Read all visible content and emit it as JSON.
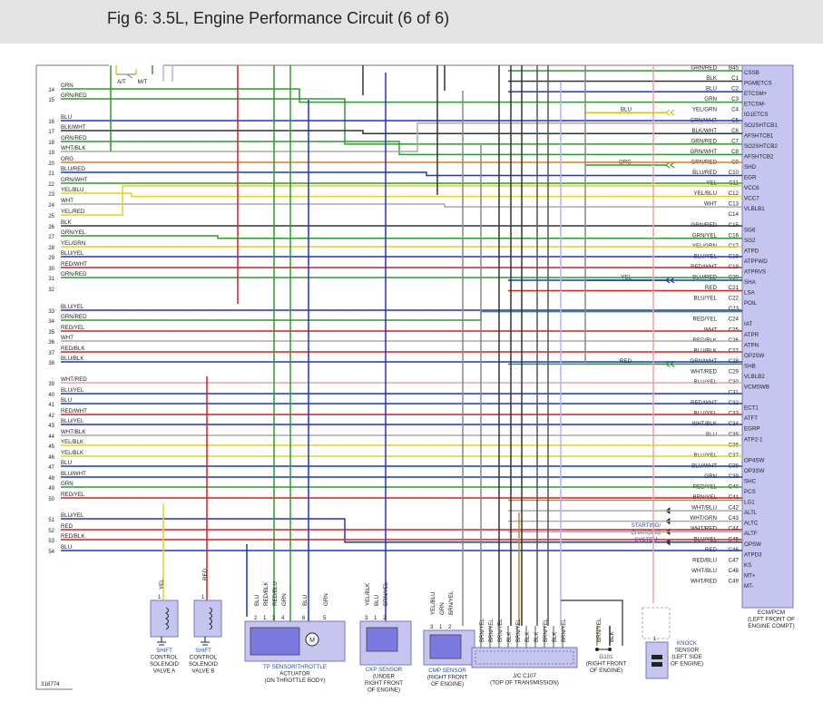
{
  "title": "Fig 6: 3.5L, Engine Performance Circuit (6 of 6)",
  "figure_id": "318774",
  "ecm": {
    "label_lines": [
      "ECM/PCM",
      "(LEFT FRONT OF",
      "ENGINE COMPT)"
    ],
    "pins": [
      {
        "pin": "B45",
        "func": "CSSB",
        "wire": "GRN/RED",
        "color": "#2e9a2e"
      },
      {
        "pin": "C1",
        "func": "PGMETCS",
        "wire": "BLK",
        "color": "#333333"
      },
      {
        "pin": "C2",
        "func": "ETCSM+",
        "wire": "BLU",
        "color": "#1a35c8"
      },
      {
        "pin": "C3",
        "func": "ETCSM-",
        "wire": "GRN",
        "color": "#2e9a2e"
      },
      {
        "pin": "C4",
        "func": "IG1ETCS",
        "wire": "YEL/GRN",
        "color": "#c9c91a",
        "ext": "BLU"
      },
      {
        "pin": "C5",
        "func": "SO2SHTCB1",
        "wire": "GRN/WHT",
        "color": "#2e9a2e"
      },
      {
        "pin": "C6",
        "func": "AFSHTCB1",
        "wire": "BLK/WHT",
        "color": "#333333"
      },
      {
        "pin": "C7",
        "func": "SO2SHTCB2",
        "wire": "GRN/RED",
        "color": "#2e9a2e"
      },
      {
        "pin": "C8",
        "func": "AFSHTCB2",
        "wire": "GRN/WHT",
        "color": "#2e9a2e"
      },
      {
        "pin": "C9",
        "func": "SHD",
        "wire": "GRN/RED",
        "color": "#2e9a2e",
        "ext": "ORG"
      },
      {
        "pin": "C10",
        "func": "EGR",
        "wire": "BLU/RED",
        "color": "#1a35c8"
      },
      {
        "pin": "C11",
        "func": "VCC6",
        "wire": "YEL",
        "color": "#e6d21a"
      },
      {
        "pin": "C12",
        "func": "VCC7",
        "wire": "YEL/BLU",
        "color": "#e6d21a"
      },
      {
        "pin": "C13",
        "func": "VLBLB1",
        "wire": "WHT",
        "color": "#aaaaaa"
      },
      {
        "pin": "C14",
        "func": "",
        "wire": "",
        "color": "#e9a3a3"
      },
      {
        "pin": "C15",
        "func": "SG6",
        "wire": "GRN/RED",
        "color": "#2e9a2e"
      },
      {
        "pin": "C16",
        "func": "SG2",
        "wire": "GRN/YEL",
        "color": "#2e9a2e"
      },
      {
        "pin": "C17",
        "func": "ATPD",
        "wire": "YEL/GRN",
        "color": "#e6d21a"
      },
      {
        "pin": "C18",
        "func": "ATPFWD",
        "wire": "BLU/YEL",
        "color": "#1a35c8"
      },
      {
        "pin": "C19",
        "func": "ATPRVS",
        "wire": "RED/WHT",
        "color": "#d42020"
      },
      {
        "pin": "C20",
        "func": "SHA",
        "wire": "BLU/RED",
        "color": "#1a35c8",
        "ext": "YEL"
      },
      {
        "pin": "C21",
        "func": "LSA",
        "wire": "RED",
        "color": "#d42020"
      },
      {
        "pin": "C22",
        "func": "POIL",
        "wire": "BLU/YEL",
        "color": "#1a35c8"
      },
      {
        "pin": "C23",
        "func": "",
        "wire": "",
        "color": "#888888"
      },
      {
        "pin": "C24",
        "func": "IAT",
        "wire": "RED/YEL",
        "color": "#d42020"
      },
      {
        "pin": "C25",
        "func": "ATPR",
        "wire": "WHT",
        "color": "#aaaaaa"
      },
      {
        "pin": "C26",
        "func": "ATPN",
        "wire": "RED/BLK",
        "color": "#d42020"
      },
      {
        "pin": "C27",
        "func": "OP2SW",
        "wire": "BLU/BLK",
        "color": "#1a35c8"
      },
      {
        "pin": "C28",
        "func": "SHB",
        "wire": "GRN/WHT",
        "color": "#2e9a2e",
        "ext": "RED"
      },
      {
        "pin": "C29",
        "func": "VLBLB2",
        "wire": "WHT/RED",
        "color": "#e9a3a3"
      },
      {
        "pin": "C30",
        "func": "VCMSWB",
        "wire": "BLU/YEL",
        "color": "#1a35c8"
      },
      {
        "pin": "C31",
        "func": "",
        "wire": "",
        "color": "#1a35c8"
      },
      {
        "pin": "C32",
        "func": "ECT1",
        "wire": "RED/WHT",
        "color": "#d42020"
      },
      {
        "pin": "C33",
        "func": "ATFT",
        "wire": "BLU/YEL",
        "color": "#1a35c8"
      },
      {
        "pin": "C34",
        "func": "EGRP",
        "wire": "WHT/BLK",
        "color": "#aaaaaa"
      },
      {
        "pin": "C35",
        "func": "ATP2-1",
        "wire": "BLU",
        "color": "#1a35c8"
      },
      {
        "pin": "C36",
        "func": "",
        "wire": "",
        "color": "#888888"
      },
      {
        "pin": "C37",
        "func": "OP4SW",
        "wire": "BLU/YEL",
        "color": "#1a35c8"
      },
      {
        "pin": "C38",
        "func": "OP3SW",
        "wire": "BLU/WHT",
        "color": "#1a35c8"
      },
      {
        "pin": "C39",
        "func": "SHC",
        "wire": "GRN",
        "color": "#2e9a2e"
      },
      {
        "pin": "C40",
        "func": "PCS",
        "wire": "RED/YEL",
        "color": "#d42020"
      },
      {
        "pin": "C41",
        "func": "LG1",
        "wire": "BRN/YEL",
        "color": "#c08a2a"
      },
      {
        "pin": "C42",
        "func": "ALTL",
        "wire": "WHT/BLU",
        "color": "#aaaaaa"
      },
      {
        "pin": "C43",
        "func": "ALTC",
        "wire": "WHT/GRN",
        "color": "#aaaaaa"
      },
      {
        "pin": "C44",
        "func": "ALTF",
        "wire": "WHT/RED",
        "color": "#aaaaaa"
      },
      {
        "pin": "C45",
        "func": "OPSW",
        "wire": "BLU/YEL",
        "color": "#1a35c8"
      },
      {
        "pin": "C46",
        "func": "ATPD3",
        "wire": "RED",
        "color": "#d42020"
      },
      {
        "pin": "C47",
        "func": "KS",
        "wire": "RED/BLU",
        "color": "#d42020"
      },
      {
        "pin": "C48",
        "func": "MT+",
        "wire": "WHT/BLU",
        "color": "#e9a3a3"
      },
      {
        "pin": "C49",
        "func": "MT-",
        "wire": "WHT/RED",
        "color": "#e9a3a3"
      }
    ]
  },
  "left_rows": [
    {
      "n": "14",
      "wire": "GRN",
      "color": "#2e9a2e"
    },
    {
      "n": "15",
      "wire": "GRN/RED",
      "color": "#2e9a2e"
    },
    {
      "n": "16",
      "wire": "BLU",
      "color": "#1a35c8"
    },
    {
      "n": "17",
      "wire": "BLK/WHT",
      "color": "#333333"
    },
    {
      "n": "18",
      "wire": "GRN/RED",
      "color": "#2e9a2e"
    },
    {
      "n": "19",
      "wire": "WHT/BLK",
      "color": "#aaaaaa"
    },
    {
      "n": "20",
      "wire": "ORG",
      "color": "#e07a1a"
    },
    {
      "n": "21",
      "wire": "BLU/RED",
      "color": "#1a35c8"
    },
    {
      "n": "22",
      "wire": "GRN/WHT",
      "color": "#2e9a2e"
    },
    {
      "n": "23",
      "wire": "YEL/BLU",
      "color": "#e6d21a"
    },
    {
      "n": "24",
      "wire": "WHT",
      "color": "#aaaaaa"
    },
    {
      "n": "25",
      "wire": "YEL/RED",
      "color": "#e6d21a"
    },
    {
      "n": "26",
      "wire": "BLK",
      "color": "#333333"
    },
    {
      "n": "27",
      "wire": "GRN/YEL",
      "color": "#2e9a2e"
    },
    {
      "n": "28",
      "wire": "YEL/GRN",
      "color": "#e6d21a"
    },
    {
      "n": "29",
      "wire": "BLU/YEL",
      "color": "#1a35c8"
    },
    {
      "n": "30",
      "wire": "RED/WHT",
      "color": "#d42020"
    },
    {
      "n": "31",
      "wire": "GRN/RED",
      "color": "#2e9a2e"
    },
    {
      "n": "32",
      "wire": "",
      "color": "#888888"
    },
    {
      "n": "33",
      "wire": "BLU/YEL",
      "color": "#1a35c8"
    },
    {
      "n": "34",
      "wire": "GRN/RED",
      "color": "#2e9a2e"
    },
    {
      "n": "35",
      "wire": "RED/YEL",
      "color": "#d42020"
    },
    {
      "n": "36",
      "wire": "WHT",
      "color": "#aaaaaa"
    },
    {
      "n": "37",
      "wire": "RED/BLK",
      "color": "#d42020"
    },
    {
      "n": "38",
      "wire": "BLU/BLK",
      "color": "#1a35c8"
    },
    {
      "n": "39",
      "wire": "WHT/RED",
      "color": "#e9a3a3"
    },
    {
      "n": "40",
      "wire": "BLU/YEL",
      "color": "#1a35c8"
    },
    {
      "n": "41",
      "wire": "BLU",
      "color": "#1a35c8"
    },
    {
      "n": "42",
      "wire": "RED/WHT",
      "color": "#d42020"
    },
    {
      "n": "43",
      "wire": "BLU/YEL",
      "color": "#1a35c8"
    },
    {
      "n": "44",
      "wire": "WHT/BLK",
      "color": "#aaaaaa"
    },
    {
      "n": "45",
      "wire": "YEL/BLK",
      "color": "#e6d21a"
    },
    {
      "n": "46",
      "wire": "YEL/BLK",
      "color": "#e6d21a"
    },
    {
      "n": "47",
      "wire": "BLU",
      "color": "#1a35c8"
    },
    {
      "n": "48",
      "wire": "BLU/WHT",
      "color": "#1a35c8"
    },
    {
      "n": "49",
      "wire": "GRN",
      "color": "#2e9a2e"
    },
    {
      "n": "50",
      "wire": "RED/YEL",
      "color": "#d42020"
    },
    {
      "n": "51",
      "wire": "BLU/YEL",
      "color": "#1a35c8"
    },
    {
      "n": "52",
      "wire": "RED",
      "color": "#d42020"
    },
    {
      "n": "53",
      "wire": "RED/BLK",
      "color": "#d42020"
    },
    {
      "n": "54",
      "wire": "BLU",
      "color": "#1a35c8"
    }
  ],
  "top_labels": {
    "at": "A/T",
    "mt": "M/T"
  },
  "charging_system": "STARTING/ CHARGING SYSTEM",
  "components": {
    "shift_a": {
      "pin": "1",
      "wire": "YEL",
      "label": [
        "SHIFT",
        "CONTROL",
        "SOLENOID",
        "VALVE A"
      ]
    },
    "shift_b": {
      "pin": "1",
      "wire": "RED",
      "label": [
        "SHIFT",
        "CONTROL",
        "SOLENOID",
        "VALVE B"
      ]
    },
    "tp_sensor": {
      "pins": [
        "2",
        "1",
        "3",
        "4",
        "6",
        "5"
      ],
      "wires": [
        "BLU",
        "RED/BLK",
        "RED/BLU",
        "GRN",
        "BLU",
        "GRN"
      ],
      "label": [
        "TP SENSOR/THROTTLE",
        "ACTUATOR",
        "(ON THROTTLE BODY)"
      ]
    },
    "ckp_sensor": {
      "pins": [
        "3",
        "1",
        "2"
      ],
      "wires": [
        "YEL/BLK",
        "BLU",
        "BRN/YEL"
      ],
      "label": [
        "CKP SENSOR",
        "(UNDER",
        "RIGHT FRONT",
        "OF ENGINE)"
      ]
    },
    "cmp_sensor": {
      "pins": [
        "3",
        "1",
        "2"
      ],
      "wires": [
        "YEL/BLU",
        "GRN",
        "BRN/YEL"
      ],
      "label": [
        "CMP SENSOR",
        "(RIGHT FRONT",
        "OF ENGINE)"
      ]
    },
    "jc_c107": {
      "wires": [
        "BRN/YEL",
        "BRN/YEL",
        "BRN/YEL",
        "BLK",
        "BRN/YEL",
        "BLK",
        "BLK",
        "BRN/YEL",
        "BLK",
        "BRN/YEL"
      ],
      "label": [
        "J/C C107",
        "(TOP OF TRANSMISSION)"
      ]
    },
    "g101": {
      "wires": [
        "BRN/YEL",
        "BLK"
      ],
      "label": [
        "G101",
        "(RIGHT FRONT",
        "OF ENGINE)"
      ]
    },
    "knock": {
      "pin": "1",
      "label": [
        "KNOCK",
        "SENSOR",
        "(LEFT SIDE",
        "OF ENGINE)"
      ]
    }
  }
}
